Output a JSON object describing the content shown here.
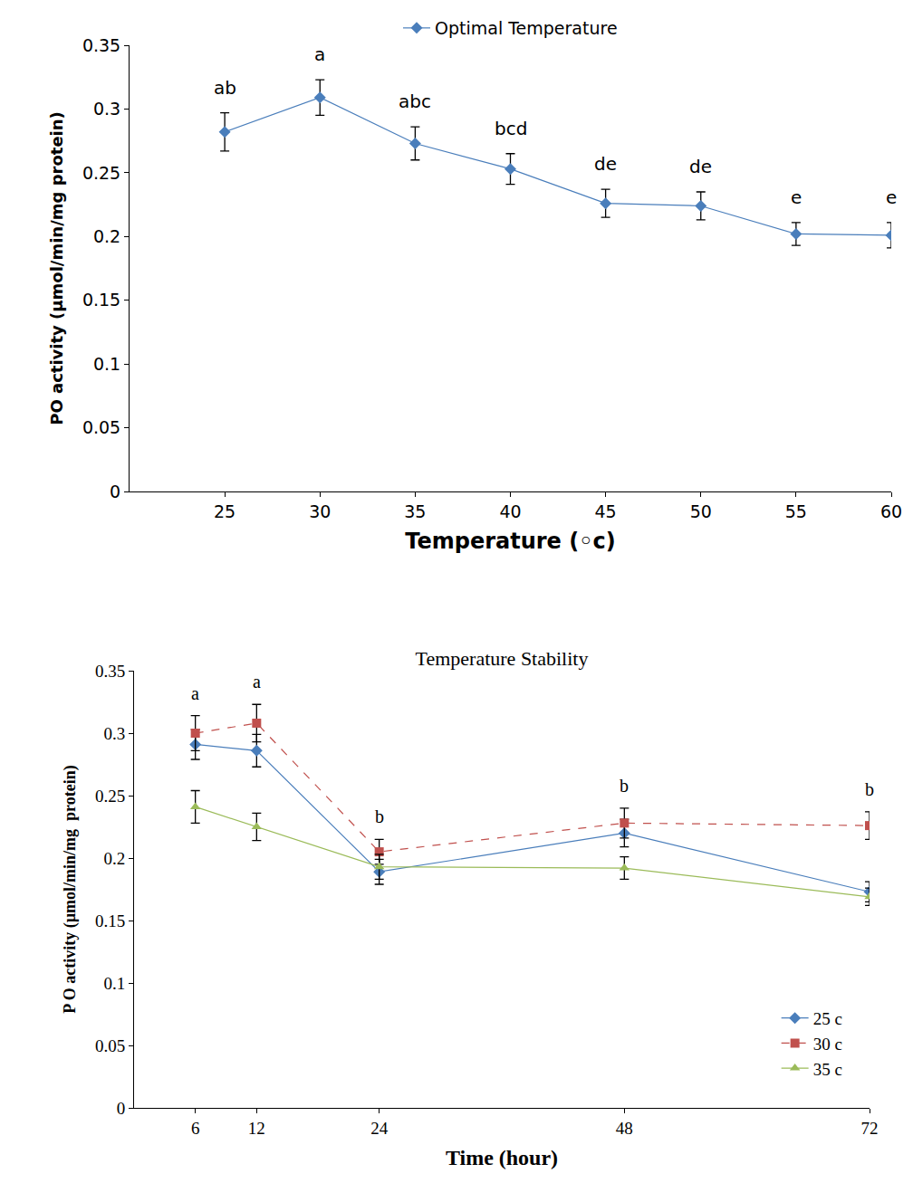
{
  "chart_data": [
    {
      "type": "line",
      "x_label": "Temperature (◦c)",
      "y_label": "PO activity (µmol/min/mg protein)",
      "x": [
        25,
        30,
        35,
        40,
        45,
        50,
        55,
        60
      ],
      "series": [
        {
          "name": "Optimal Temperature",
          "color": "#4a7ebb",
          "marker": "diamond",
          "line_style": "solid",
          "values": [
            0.282,
            0.309,
            0.273,
            0.253,
            0.226,
            0.224,
            0.202,
            0.201
          ],
          "errors": [
            0.015,
            0.014,
            0.013,
            0.012,
            0.011,
            0.011,
            0.009,
            0.01
          ]
        }
      ],
      "annotations": [
        {
          "x": 25,
          "text": "ab"
        },
        {
          "x": 30,
          "text": "a"
        },
        {
          "x": 35,
          "text": "abc"
        },
        {
          "x": 40,
          "text": "bcd"
        },
        {
          "x": 45,
          "text": "de"
        },
        {
          "x": 50,
          "text": "de"
        },
        {
          "x": 55,
          "text": "e"
        },
        {
          "x": 60,
          "text": "e"
        }
      ],
      "xlim": [
        20,
        60
      ],
      "xticks": [
        25,
        30,
        35,
        40,
        45,
        50,
        55,
        60
      ],
      "ylim": [
        0,
        0.35
      ],
      "yticks": [
        0,
        0.05,
        0.1,
        0.15,
        0.2,
        0.25,
        0.3,
        0.35
      ],
      "grid": false,
      "legend": "top"
    },
    {
      "type": "line",
      "title": "Temperature Stability",
      "x_label": "Time (hour)",
      "y_label": "P O activity (µmol/min/mg  protein)",
      "x": [
        6,
        12,
        24,
        48,
        72
      ],
      "series": [
        {
          "name": "25 c",
          "color": "#4a7ebb",
          "marker": "diamond",
          "line_style": "solid",
          "values": [
            0.291,
            0.286,
            0.189,
            0.22,
            0.173
          ],
          "errors": [
            0.012,
            0.013,
            0.01,
            0.011,
            0.008
          ]
        },
        {
          "name": "30 c",
          "color": "#c0504d",
          "marker": "square",
          "line_style": "dashed",
          "values": [
            0.3,
            0.308,
            0.205,
            0.228,
            0.226
          ],
          "errors": [
            0.014,
            0.015,
            0.01,
            0.012,
            0.011
          ]
        },
        {
          "name": "35 c",
          "color": "#9bbb59",
          "marker": "triangle-up",
          "line_style": "solid",
          "values": [
            0.241,
            0.225,
            0.193,
            0.192,
            0.169
          ],
          "errors": [
            0.013,
            0.011,
            0.01,
            0.009,
            0.007
          ]
        }
      ],
      "annotations": [
        {
          "x": 6,
          "text": "a"
        },
        {
          "x": 12,
          "text": "a"
        },
        {
          "x": 24,
          "text": "b"
        },
        {
          "x": 48,
          "text": "b"
        },
        {
          "x": 72,
          "text": "b"
        }
      ],
      "xlim": [
        0,
        72
      ],
      "xticks": [
        6,
        12,
        24,
        48,
        72
      ],
      "ylim": [
        0,
        0.35
      ],
      "yticks": [
        0,
        0.05,
        0.1,
        0.15,
        0.2,
        0.25,
        0.3,
        0.35
      ],
      "grid": false,
      "legend": "lower right"
    }
  ]
}
